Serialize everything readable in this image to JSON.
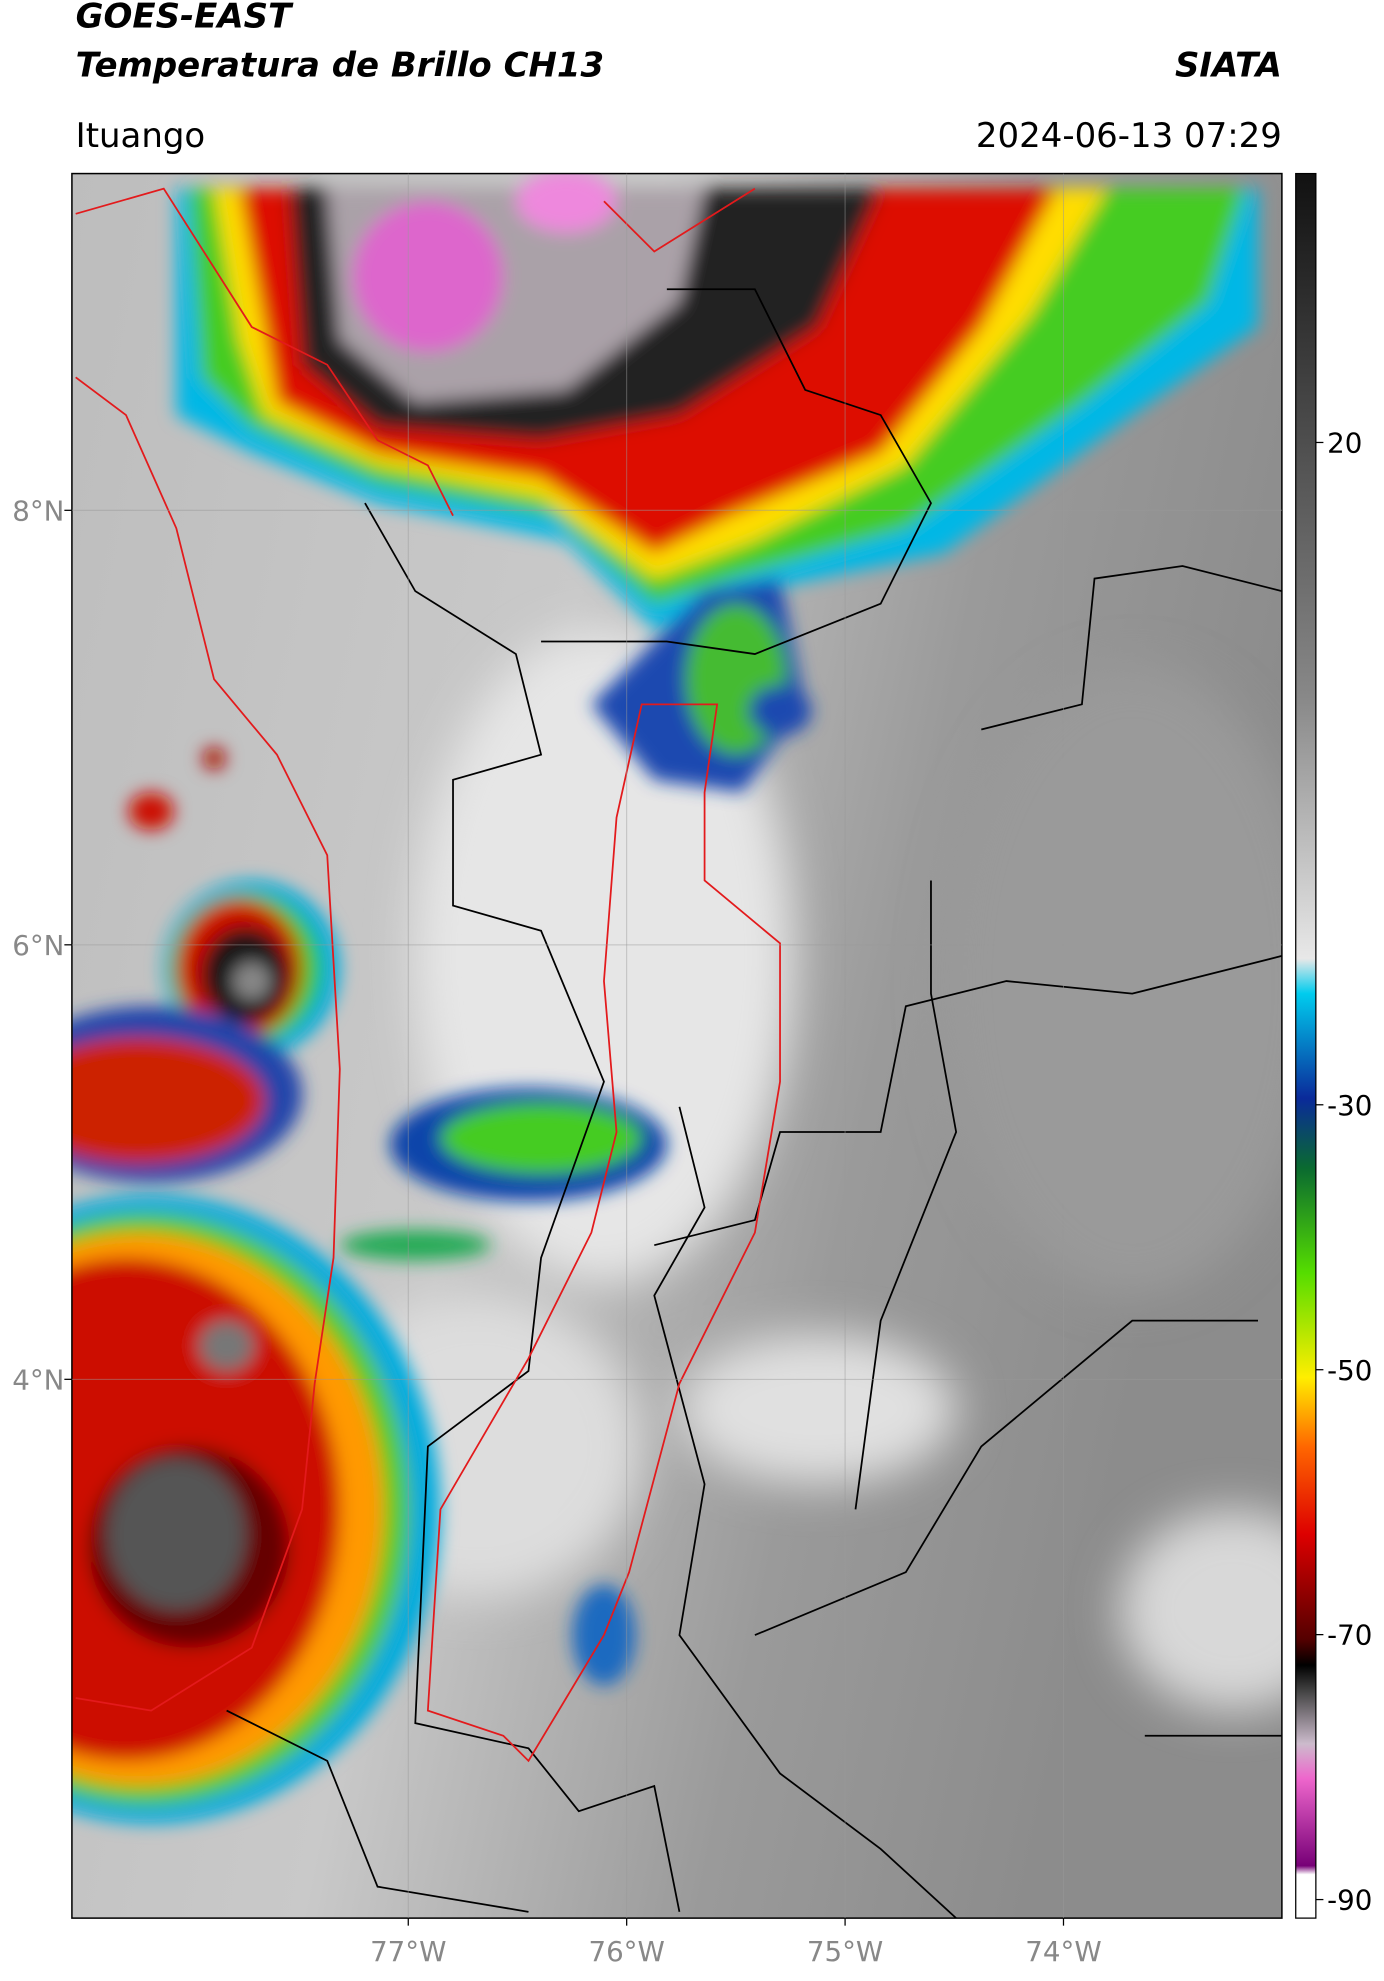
{
  "header": {
    "title": "GOES-EAST",
    "subtitle": "Temperatura de Brillo CH13",
    "source": "SIATA",
    "location": "Ituango",
    "datetime": "2024-06-13 07:29"
  },
  "map": {
    "xlim": [
      -78.54,
      -73.0
    ],
    "ylim": [
      1.52,
      9.55
    ],
    "xticks": [
      {
        "value": -77,
        "label": "77°W"
      },
      {
        "value": -76,
        "label": "76°W"
      },
      {
        "value": -75,
        "label": "75°W"
      },
      {
        "value": -74,
        "label": "74°W"
      }
    ],
    "yticks": [
      {
        "value": 8,
        "label": "8°N"
      },
      {
        "value": 6,
        "label": "6°N"
      },
      {
        "value": 4,
        "label": "4°N"
      }
    ]
  },
  "colorbar": {
    "lim": [
      -91.4,
      40.3
    ],
    "ticks": [
      20,
      -30,
      -50,
      -70,
      -90
    ]
  }
}
